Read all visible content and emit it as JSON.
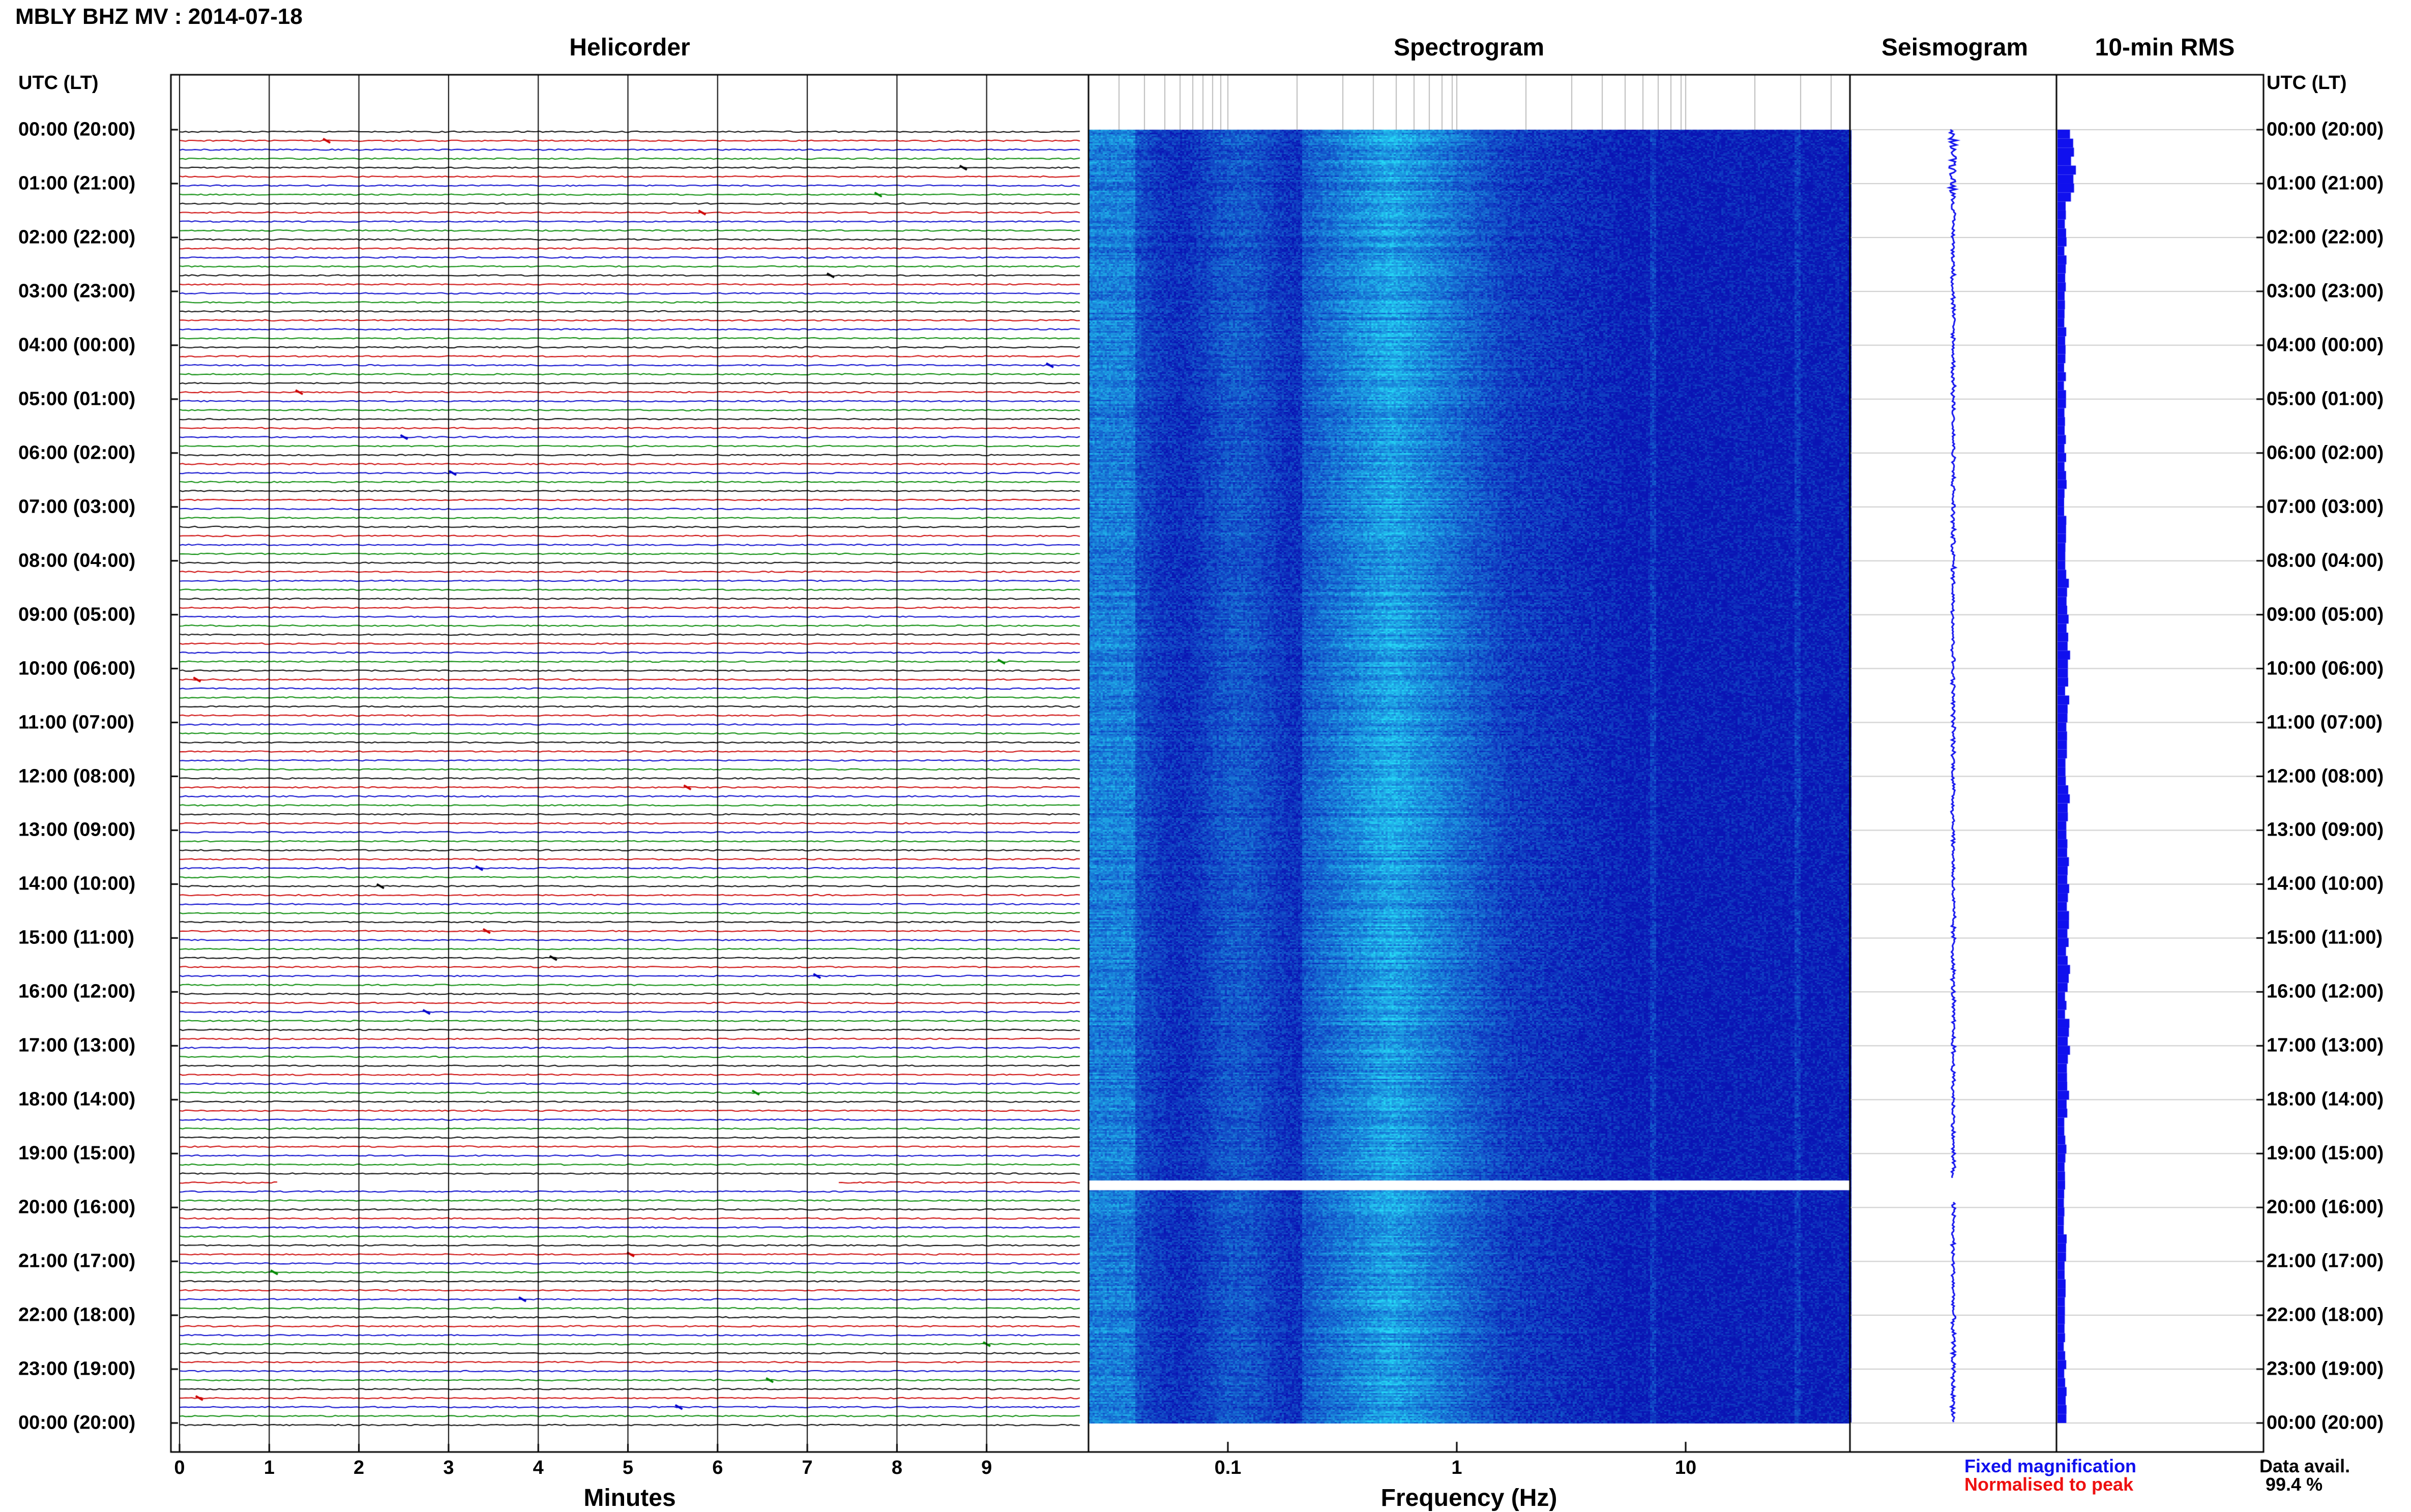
{
  "title": "MBLY BHZ MV : 2014-07-18",
  "panels": {
    "helicorder": "Helicorder",
    "spectrogram": "Spectrogram",
    "seismogram": "Seismogram",
    "rms": "10-min RMS"
  },
  "utc_header": "UTC (LT)",
  "time_labels": [
    "00:00 (20:00)",
    "01:00 (21:00)",
    "02:00 (22:00)",
    "03:00 (23:00)",
    "04:00 (00:00)",
    "05:00 (01:00)",
    "06:00 (02:00)",
    "07:00 (03:00)",
    "08:00 (04:00)",
    "09:00 (05:00)",
    "10:00 (06:00)",
    "11:00 (07:00)",
    "12:00 (08:00)",
    "13:00 (09:00)",
    "14:00 (10:00)",
    "15:00 (11:00)",
    "16:00 (12:00)",
    "17:00 (13:00)",
    "18:00 (14:00)",
    "19:00 (15:00)",
    "20:00 (16:00)",
    "21:00 (17:00)",
    "22:00 (18:00)",
    "23:00 (19:00)",
    "00:00 (20:00)"
  ],
  "helicorder_ticks": [
    "0",
    "1",
    "2",
    "3",
    "4",
    "5",
    "6",
    "7",
    "8",
    "9"
  ],
  "frequency_ticks": [
    "0.1",
    "1",
    "10"
  ],
  "xlabels": {
    "minutes": "Minutes",
    "frequency": "Frequency (Hz)"
  },
  "legend": {
    "fixed": "Fixed magnification",
    "normalised": "Normalised to peak",
    "fixed_color": "#1010ee",
    "normalised_color": "#ee1010"
  },
  "data_avail": {
    "label": "Data avail.",
    "value": "99.4 %"
  },
  "colors": {
    "trace_black": "#000000",
    "trace_red": "#cc0000",
    "trace_blue": "#0000cc",
    "trace_green": "#008800",
    "spec_dark": "#0a14b4",
    "spec_light": "#25d6f5"
  },
  "chart_data": [
    {
      "type": "heatmap",
      "title": "Helicorder",
      "xlabel": "Minutes",
      "xlim": [
        0,
        10
      ],
      "ylabel": "UTC (LT)",
      "ylim": [
        "00:00",
        "24:00"
      ],
      "trace_colors_cycle": [
        "black",
        "red",
        "blue",
        "green"
      ],
      "lines_per_hour": 6,
      "data_gap_utc": "19:30"
    },
    {
      "type": "heatmap",
      "title": "Spectrogram",
      "xlabel": "Frequency (Hz)",
      "x_scale": "log",
      "xlim": [
        0.02,
        50
      ],
      "gap_utc": [
        "19:30",
        "19:40"
      ]
    },
    {
      "type": "line",
      "title": "Seismogram"
    },
    {
      "type": "bar",
      "title": "10-min RMS",
      "series": [
        {
          "name": "Fixed magnification"
        },
        {
          "name": "Normalised to peak"
        }
      ]
    }
  ]
}
